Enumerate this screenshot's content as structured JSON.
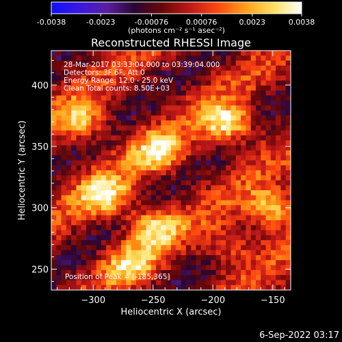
{
  "colorbar": {
    "ticks": [
      "-0.0038",
      "-0.0023",
      "-0.00076",
      "0.00076",
      "0.0023",
      "0.0038"
    ],
    "tick_values": [
      -0.0038,
      -0.0023,
      -0.00076,
      0.00076,
      0.0023,
      0.0038
    ],
    "range": [
      -0.0038,
      0.0038
    ],
    "units": "(photons cm⁻² s⁻¹ asec⁻²)",
    "colormap": [
      "#1010ff",
      "#3a18e0",
      "#5a1fa0",
      "#2a0630",
      "#6a0808",
      "#c01818",
      "#ff4a10",
      "#ffa018",
      "#ffe060",
      "#ffffff"
    ]
  },
  "chart_data": {
    "type": "heatmap",
    "title": "Reconstructed RHESSI Image",
    "xlabel": "Heliocentric X (arcsec)",
    "ylabel": "Heliocentric Y (arcsec)",
    "xlim": [
      -335,
      -135
    ],
    "ylim": [
      233,
      428
    ],
    "xticks": [
      -300,
      -250,
      -200,
      -150
    ],
    "xtick_labels": [
      "−300",
      "−250",
      "−200",
      "−150"
    ],
    "yticks": [
      250,
      300,
      350,
      400
    ],
    "ytick_labels": [
      "250",
      "300",
      "350",
      "400"
    ],
    "annotations": [
      "28-Mar-2017 03:33:04.000 to 03:39:04.000",
      "Detectors: 3F 6F, Att 0",
      "Energy Range: 12.0 - 25.0 keV",
      "Clean     Total counts: 8.50E+03"
    ],
    "peak_label": "Position of Peak = [-185,365]",
    "peak": [
      -185,
      365
    ],
    "bright_sources": [
      {
        "x": -188,
        "y": 368,
        "peak": 0.0038
      },
      {
        "x": -245,
        "y": 345,
        "peak": 0.003
      },
      {
        "x": -290,
        "y": 310,
        "peak": 0.0032
      },
      {
        "x": -310,
        "y": 370,
        "peak": 0.0027
      },
      {
        "x": -250,
        "y": 285,
        "peak": 0.003
      },
      {
        "x": -150,
        "y": 300,
        "peak": 0.0035
      },
      {
        "x": -270,
        "y": 255,
        "peak": 0.0025
      },
      {
        "x": -185,
        "y": 270,
        "peak": 0.002
      }
    ],
    "colorscale": "signed: blue/purple negative, dark red to yellow/white positive"
  },
  "footer": {
    "date": "6-Sep-2022 03:17"
  }
}
